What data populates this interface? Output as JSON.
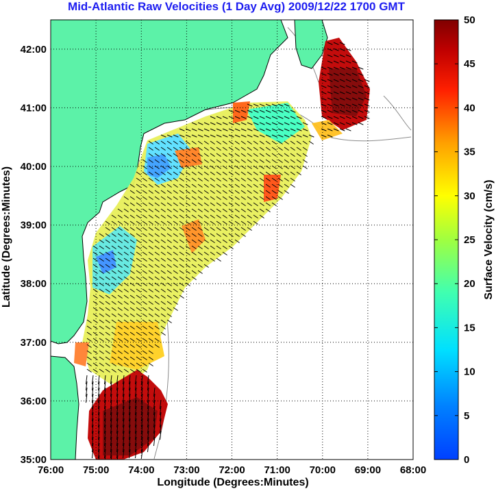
{
  "title": "Mid-Atlantic Raw Velocities (1 Day Avg) 2009/12/22 1700 GMT",
  "chart_data": {
    "type": "heatmap",
    "title": "Mid-Atlantic Raw Velocities (1 Day Avg) 2009/12/22 1700 GMT",
    "xlabel": "Longitude (Degrees:Minutes)",
    "ylabel": "Latitude (Degrees:Minutes)",
    "x_ticks": [
      "76:00",
      "75:00",
      "74:00",
      "73:00",
      "72:00",
      "71:00",
      "70:00",
      "69:00",
      "68:00"
    ],
    "y_ticks": [
      "35:00",
      "36:00",
      "37:00",
      "38:00",
      "39:00",
      "40:00",
      "41:00",
      "42:00"
    ],
    "xlim": [
      -76,
      -68
    ],
    "ylim": [
      35,
      42.5
    ],
    "grid": true,
    "colorbar": {
      "label": "Surface Velocity (cm/s)",
      "ticks": [
        0,
        5,
        10,
        15,
        20,
        25,
        30,
        35,
        40,
        45,
        50
      ],
      "range": [
        0,
        50
      ],
      "colormap": "jet"
    },
    "colors": {
      "land": "#5cf2a8",
      "coastline": "#000000",
      "bathymetry": "#8a8a8a",
      "grid": "#000000",
      "vector": "#000000"
    }
  }
}
